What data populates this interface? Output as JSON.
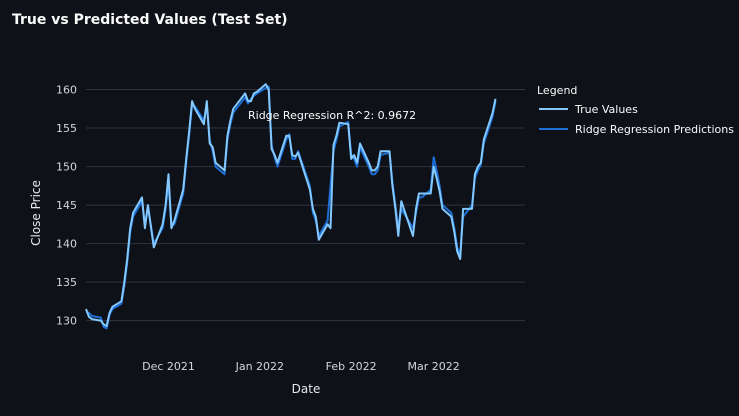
{
  "chart_data": {
    "type": "line",
    "title": "True vs Predicted Values (Test Set)",
    "xlabel": "Date",
    "ylabel": "Close Price",
    "ylim": [
      128,
      161.5
    ],
    "xlim": [
      "2021-11-03",
      "2022-04-01"
    ],
    "yticks": [
      130,
      135,
      140,
      145,
      150,
      155,
      160
    ],
    "xticks": [
      {
        "label": "Dec 2021",
        "date": "2021-12-01"
      },
      {
        "label": "Jan 2022",
        "date": "2022-01-01"
      },
      {
        "label": "Feb 2022",
        "date": "2022-02-01"
      },
      {
        "label": "Mar 2022",
        "date": "2022-03-01"
      }
    ],
    "grid": "horizontal",
    "legend": {
      "title": "Legend",
      "position": "top-right"
    },
    "annotation": "Ridge Regression R^2: 0.9672",
    "series": [
      {
        "name": "True Values",
        "color": "#83c9ff",
        "points": [
          [
            "2021-11-03",
            131.5
          ],
          [
            "2021-11-04",
            130.5
          ],
          [
            "2021-11-05",
            130.2
          ],
          [
            "2021-11-08",
            130.0
          ],
          [
            "2021-11-09",
            129.5
          ],
          [
            "2021-11-10",
            129.3
          ],
          [
            "2021-11-11",
            131.0
          ],
          [
            "2021-11-12",
            131.8
          ],
          [
            "2021-11-15",
            132.5
          ],
          [
            "2021-11-16",
            135.0
          ],
          [
            "2021-11-17",
            138.0
          ],
          [
            "2021-11-18",
            142.0
          ],
          [
            "2021-11-19",
            144.0
          ],
          [
            "2021-11-22",
            146.0
          ],
          [
            "2021-11-23",
            142.0
          ],
          [
            "2021-11-24",
            145.0
          ],
          [
            "2021-11-26",
            139.5
          ],
          [
            "2021-11-29",
            142.5
          ],
          [
            "2021-11-30",
            145.0
          ],
          [
            "2021-12-01",
            149.0
          ],
          [
            "2021-12-02",
            142.0
          ],
          [
            "2021-12-03",
            143.0
          ],
          [
            "2021-12-06",
            147.0
          ],
          [
            "2021-12-07",
            151.0
          ],
          [
            "2021-12-08",
            154.5
          ],
          [
            "2021-12-09",
            158.5
          ],
          [
            "2021-12-10",
            157.5
          ],
          [
            "2021-12-13",
            155.5
          ],
          [
            "2021-12-14",
            158.5
          ],
          [
            "2021-12-15",
            153.0
          ],
          [
            "2021-12-16",
            152.5
          ],
          [
            "2021-12-17",
            150.5
          ],
          [
            "2021-12-20",
            149.5
          ],
          [
            "2021-12-21",
            154.0
          ],
          [
            "2021-12-22",
            156.0
          ],
          [
            "2021-12-23",
            157.5
          ],
          [
            "2021-12-27",
            159.5
          ],
          [
            "2021-12-28",
            158.5
          ],
          [
            "2021-12-29",
            158.5
          ],
          [
            "2021-12-30",
            159.5
          ],
          [
            "2021-12-31",
            159.7
          ],
          [
            "2022-01-03",
            160.7
          ],
          [
            "2022-01-04",
            160.0
          ],
          [
            "2022-01-05",
            152.3
          ],
          [
            "2022-01-06",
            151.5
          ],
          [
            "2022-01-07",
            150.5
          ],
          [
            "2022-01-10",
            154.0
          ],
          [
            "2022-01-11",
            154.0
          ],
          [
            "2022-01-12",
            151.5
          ],
          [
            "2022-01-13",
            151.3
          ],
          [
            "2022-01-14",
            151.8
          ],
          [
            "2022-01-18",
            147.0
          ],
          [
            "2022-01-19",
            144.5
          ],
          [
            "2022-01-20",
            143.5
          ],
          [
            "2022-01-21",
            140.5
          ],
          [
            "2022-01-24",
            142.5
          ],
          [
            "2022-01-25",
            142.0
          ],
          [
            "2022-01-26",
            152.8
          ],
          [
            "2022-01-27",
            154.0
          ],
          [
            "2022-01-28",
            155.7
          ],
          [
            "2022-01-31",
            155.5
          ],
          [
            "2022-02-01",
            151.0
          ],
          [
            "2022-02-02",
            151.5
          ],
          [
            "2022-02-03",
            150.5
          ],
          [
            "2022-02-04",
            153.0
          ],
          [
            "2022-02-07",
            150.5
          ],
          [
            "2022-02-08",
            149.5
          ],
          [
            "2022-02-09",
            149.5
          ],
          [
            "2022-02-10",
            150.0
          ],
          [
            "2022-02-11",
            152.0
          ],
          [
            "2022-02-14",
            152.0
          ],
          [
            "2022-02-15",
            147.5
          ],
          [
            "2022-02-16",
            144.5
          ],
          [
            "2022-02-17",
            141.0
          ],
          [
            "2022-02-18",
            145.5
          ],
          [
            "2022-02-22",
            141.0
          ],
          [
            "2022-02-23",
            144.5
          ],
          [
            "2022-02-24",
            146.5
          ],
          [
            "2022-02-25",
            146.5
          ],
          [
            "2022-02-28",
            146.5
          ],
          [
            "2022-03-01",
            150.0
          ],
          [
            "2022-03-02",
            148.5
          ],
          [
            "2022-03-03",
            146.8
          ],
          [
            "2022-03-04",
            144.5
          ],
          [
            "2022-03-07",
            143.5
          ],
          [
            "2022-03-08",
            141.5
          ],
          [
            "2022-03-09",
            139.0
          ],
          [
            "2022-03-10",
            138.0
          ],
          [
            "2022-03-11",
            144.5
          ],
          [
            "2022-03-14",
            144.5
          ],
          [
            "2022-03-15",
            149.0
          ],
          [
            "2022-03-16",
            150.0
          ],
          [
            "2022-03-17",
            150.5
          ],
          [
            "2022-03-18",
            153.5
          ],
          [
            "2022-03-21",
            157.0
          ],
          [
            "2022-03-22",
            158.8
          ]
        ]
      },
      {
        "name": "Ridge Regression Predictions",
        "color": "#1c6fd6",
        "points": [
          [
            "2021-11-03",
            131.2
          ],
          [
            "2021-11-04",
            131.0
          ],
          [
            "2021-11-05",
            130.6
          ],
          [
            "2021-11-08",
            130.4
          ],
          [
            "2021-11-09",
            129.2
          ],
          [
            "2021-11-10",
            129.0
          ],
          [
            "2021-11-11",
            130.8
          ],
          [
            "2021-11-12",
            131.5
          ],
          [
            "2021-11-15",
            132.2
          ],
          [
            "2021-11-16",
            134.5
          ],
          [
            "2021-11-17",
            137.5
          ],
          [
            "2021-11-18",
            141.5
          ],
          [
            "2021-11-19",
            143.5
          ],
          [
            "2021-11-22",
            145.5
          ],
          [
            "2021-11-23",
            142.5
          ],
          [
            "2021-11-24",
            144.8
          ],
          [
            "2021-11-26",
            140.0
          ],
          [
            "2021-11-29",
            142.0
          ],
          [
            "2021-11-30",
            144.5
          ],
          [
            "2021-12-01",
            148.0
          ],
          [
            "2021-12-02",
            142.5
          ],
          [
            "2021-12-03",
            142.5
          ],
          [
            "2021-12-06",
            146.5
          ],
          [
            "2021-12-07",
            150.5
          ],
          [
            "2021-12-08",
            154.0
          ],
          [
            "2021-12-09",
            158.0
          ],
          [
            "2021-12-10",
            157.8
          ],
          [
            "2021-12-13",
            156.0
          ],
          [
            "2021-12-14",
            158.0
          ],
          [
            "2021-12-15",
            153.5
          ],
          [
            "2021-12-16",
            152.0
          ],
          [
            "2021-12-17",
            150.0
          ],
          [
            "2021-12-20",
            149.0
          ],
          [
            "2021-12-21",
            153.5
          ],
          [
            "2021-12-22",
            155.5
          ],
          [
            "2021-12-23",
            157.0
          ],
          [
            "2021-12-27",
            159.0
          ],
          [
            "2021-12-28",
            158.2
          ],
          [
            "2021-12-29",
            158.8
          ],
          [
            "2021-12-30",
            159.2
          ],
          [
            "2021-12-31",
            159.5
          ],
          [
            "2022-01-03",
            160.2
          ],
          [
            "2022-01-04",
            160.4
          ],
          [
            "2022-01-05",
            152.8
          ],
          [
            "2022-01-06",
            151.2
          ],
          [
            "2022-01-07",
            150.0
          ],
          [
            "2022-01-10",
            153.5
          ],
          [
            "2022-01-11",
            154.2
          ],
          [
            "2022-01-12",
            151.0
          ],
          [
            "2022-01-13",
            151.0
          ],
          [
            "2022-01-14",
            152.0
          ],
          [
            "2022-01-18",
            147.5
          ],
          [
            "2022-01-19",
            144.0
          ],
          [
            "2022-01-20",
            143.0
          ],
          [
            "2022-01-21",
            141.0
          ],
          [
            "2022-01-24",
            143.0
          ],
          [
            "2022-01-25",
            147.5
          ],
          [
            "2022-01-26",
            152.0
          ],
          [
            "2022-01-27",
            153.5
          ],
          [
            "2022-01-28",
            155.2
          ],
          [
            "2022-01-31",
            155.8
          ],
          [
            "2022-02-01",
            151.5
          ],
          [
            "2022-02-02",
            151.0
          ],
          [
            "2022-02-03",
            150.0
          ],
          [
            "2022-02-04",
            152.5
          ],
          [
            "2022-02-07",
            150.0
          ],
          [
            "2022-02-08",
            149.0
          ],
          [
            "2022-02-09",
            149.0
          ],
          [
            "2022-02-10",
            149.5
          ],
          [
            "2022-02-11",
            151.5
          ],
          [
            "2022-02-14",
            151.8
          ],
          [
            "2022-02-15",
            148.0
          ],
          [
            "2022-02-16",
            145.0
          ],
          [
            "2022-02-17",
            142.0
          ],
          [
            "2022-02-18",
            144.5
          ],
          [
            "2022-02-22",
            142.0
          ],
          [
            "2022-02-23",
            144.0
          ],
          [
            "2022-02-24",
            146.0
          ],
          [
            "2022-02-25",
            146.0
          ],
          [
            "2022-02-28",
            147.0
          ],
          [
            "2022-03-01",
            151.2
          ],
          [
            "2022-03-02",
            149.5
          ],
          [
            "2022-03-03",
            147.5
          ],
          [
            "2022-03-04",
            145.0
          ],
          [
            "2022-03-07",
            144.0
          ],
          [
            "2022-03-08",
            142.0
          ],
          [
            "2022-03-09",
            139.5
          ],
          [
            "2022-03-10",
            138.5
          ],
          [
            "2022-03-11",
            143.5
          ],
          [
            "2022-03-14",
            145.0
          ],
          [
            "2022-03-15",
            148.5
          ],
          [
            "2022-03-16",
            149.5
          ],
          [
            "2022-03-17",
            150.2
          ],
          [
            "2022-03-18",
            153.0
          ],
          [
            "2022-03-21",
            156.5
          ],
          [
            "2022-03-22",
            158.5
          ]
        ]
      }
    ]
  }
}
